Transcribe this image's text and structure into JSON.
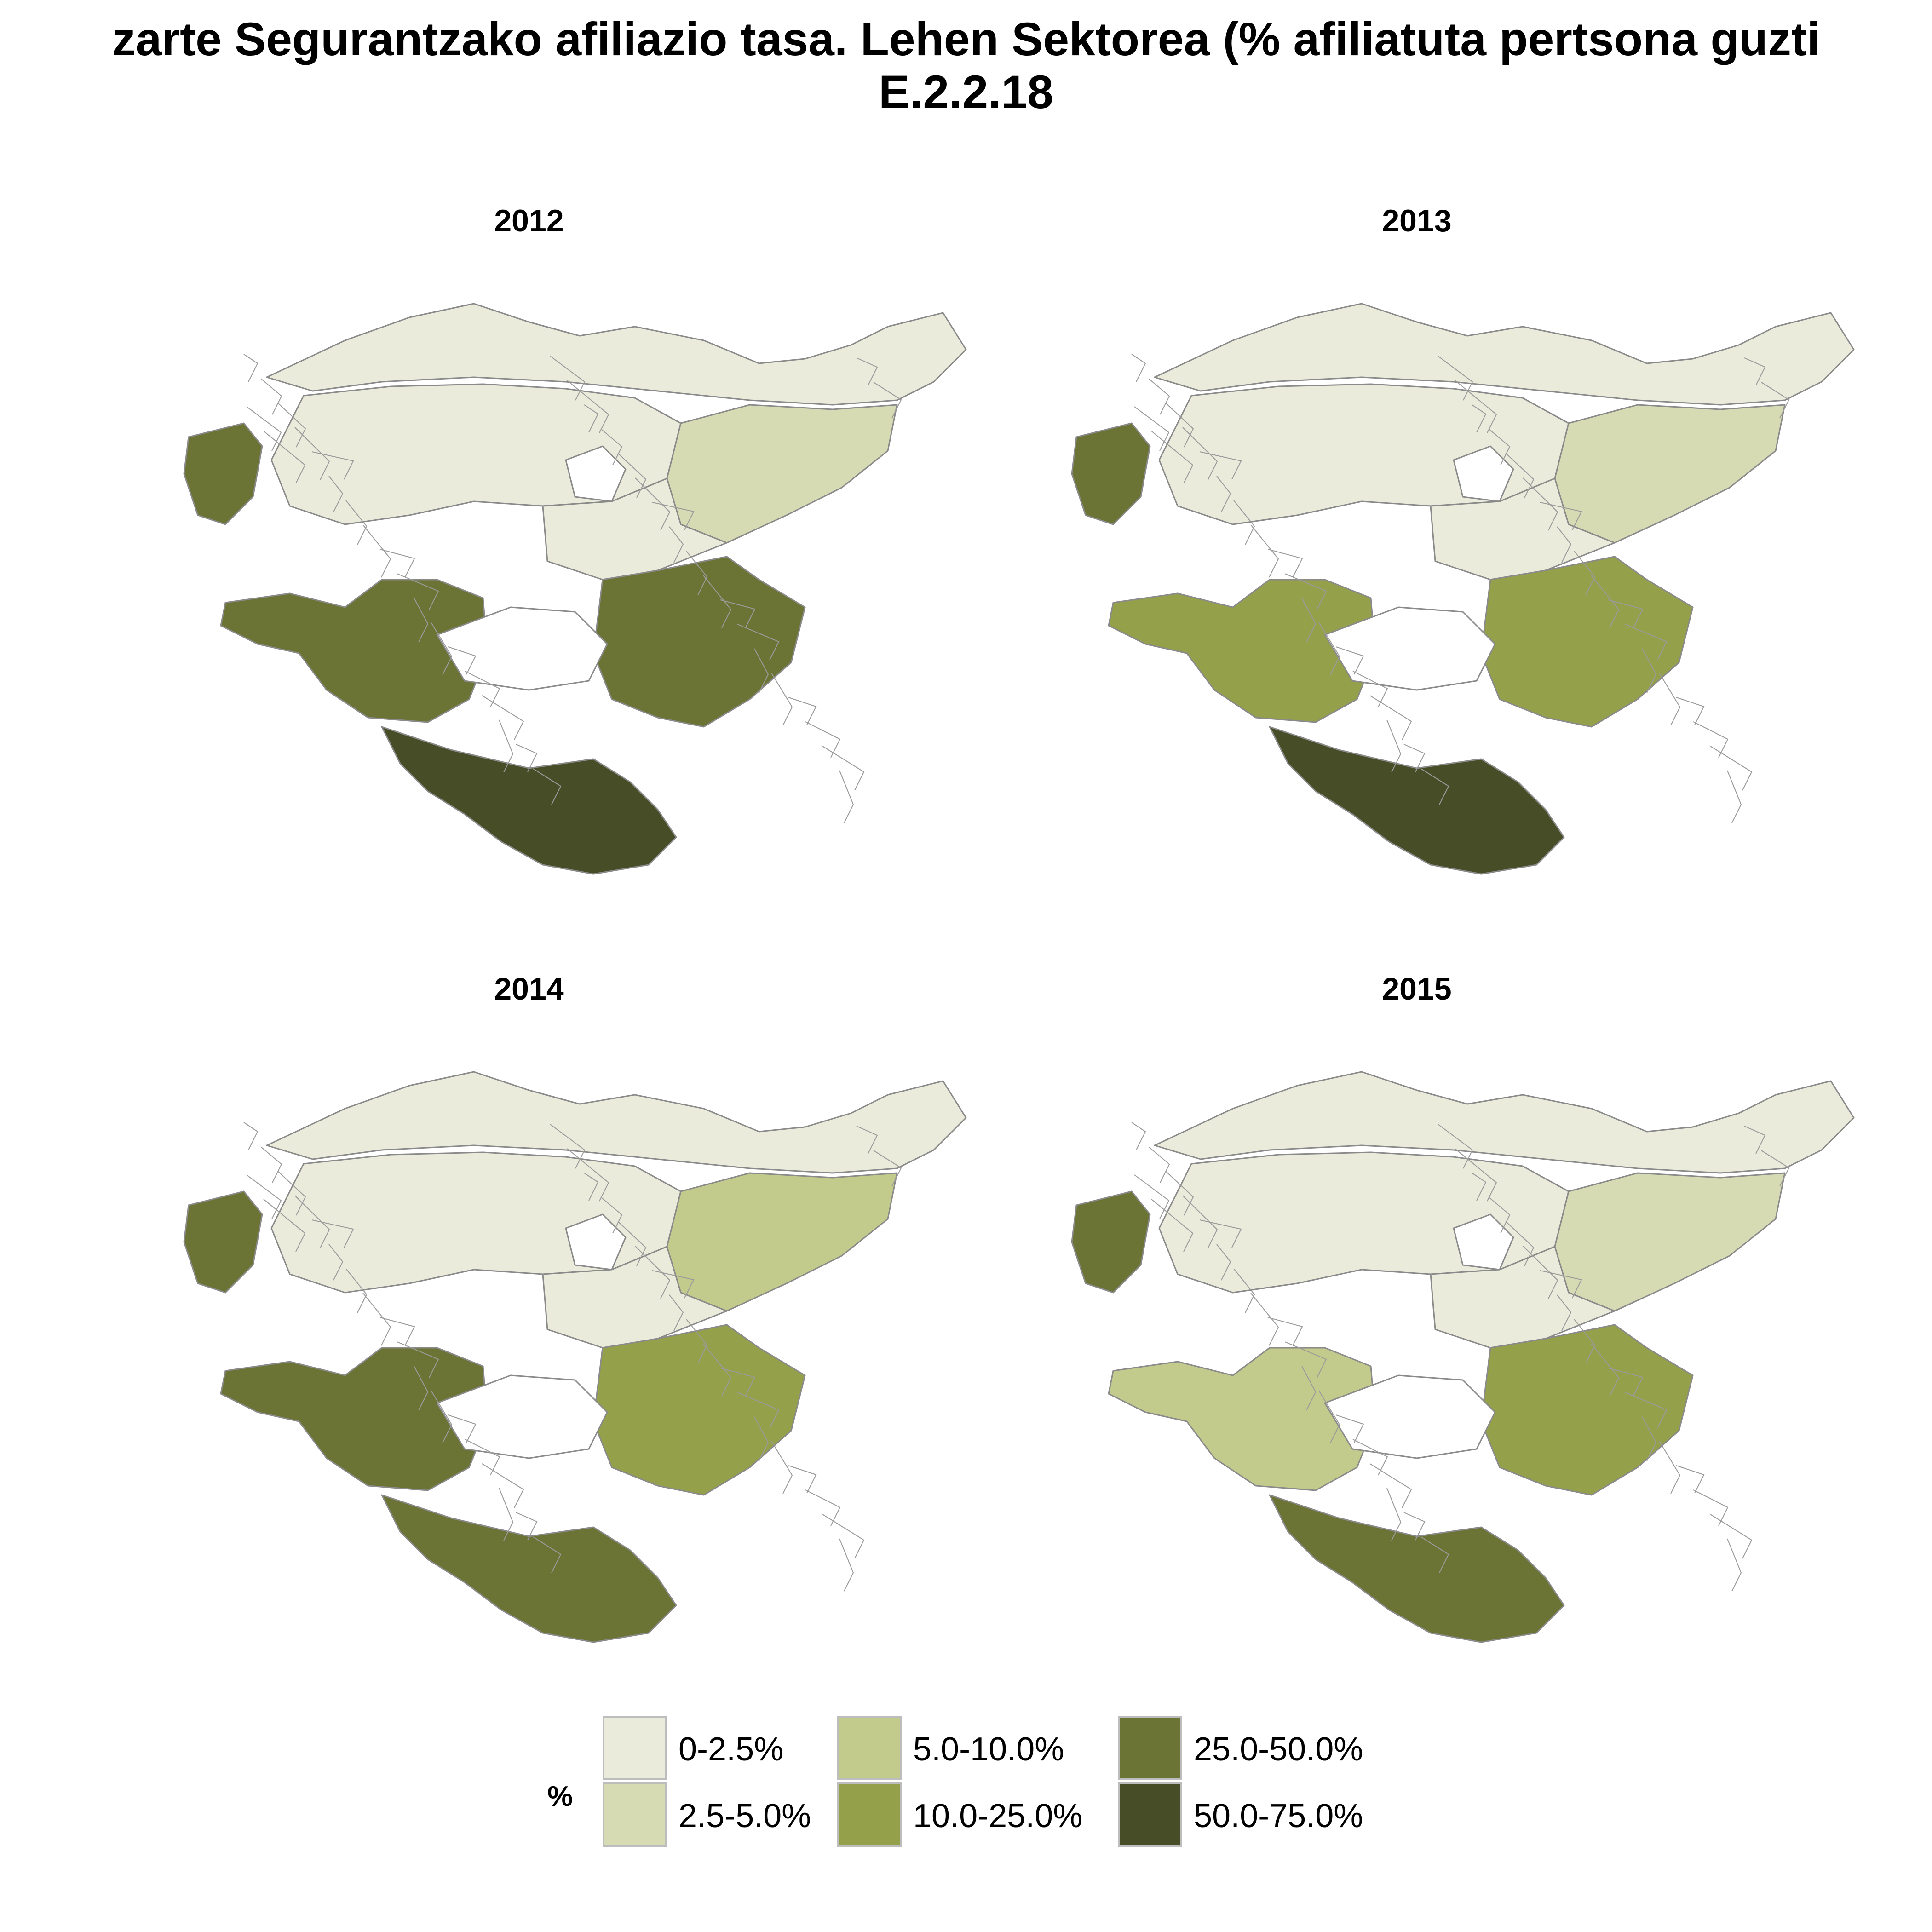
{
  "title": {
    "line1": "zarte Segurantzako afiliazio tasa. Lehen Sektorea (% afiliatuta pertsona guzti",
    "line2": "E.2.2.18"
  },
  "panels": [
    {
      "year": "2012",
      "shift": [
        0,
        0,
        0,
        0,
        1,
        1,
        1
      ]
    },
    {
      "year": "2013",
      "shift": [
        0,
        0,
        0,
        0,
        0,
        0,
        1
      ]
    },
    {
      "year": "2014",
      "shift": [
        0,
        0,
        1,
        0,
        1,
        0,
        0
      ]
    },
    {
      "year": "2015",
      "shift": [
        0,
        0,
        0,
        0,
        -1,
        0,
        0
      ]
    }
  ],
  "legend": {
    "title": "%",
    "items": [
      {
        "label": "0-2.5%",
        "color": "#eaebdb"
      },
      {
        "label": "2.5-5.0%",
        "color": "#d6dbb3"
      },
      {
        "label": "5.0-10.0%",
        "color": "#c3cb8c"
      },
      {
        "label": "10.0-25.0%",
        "color": "#95a04a"
      },
      {
        "label": "25.0-50.0%",
        "color": "#6b7434"
      },
      {
        "label": "50.0-75.0%",
        "color": "#474d26"
      }
    ]
  },
  "map_regions": {
    "zones": [
      "coast",
      "north-interior",
      "center",
      "east",
      "south-west",
      "south-center",
      "far-south"
    ],
    "base_class": [
      0,
      0,
      1,
      0,
      3,
      3,
      4
    ]
  }
}
